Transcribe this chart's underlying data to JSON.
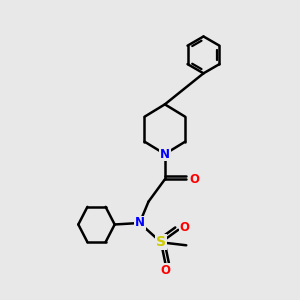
{
  "bg_color": "#e8e8e8",
  "bond_color": "#000000",
  "bond_width": 1.8,
  "atom_colors": {
    "N": "#0000ff",
    "O": "#ff0000",
    "S": "#cccc00",
    "C": "#000000"
  },
  "font_size_atom": 8.5
}
